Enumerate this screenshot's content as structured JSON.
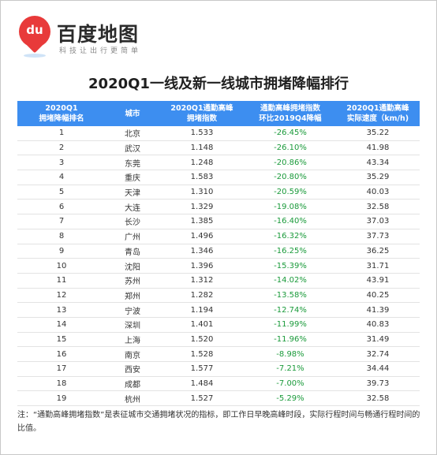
{
  "brand": {
    "logo_text": "du",
    "name": "百度地图",
    "slogan": "科技让出行更简单"
  },
  "title": "2020Q1一线及新一线城市拥堵降幅排行",
  "table": {
    "headers": [
      [
        "2020Q1",
        "拥堵降幅排名"
      ],
      [
        "城市"
      ],
      [
        "2020Q1通勤高峰",
        "拥堵指数"
      ],
      [
        "通勤高峰拥堵指数",
        "环比2019Q4降幅"
      ],
      [
        "2020Q1通勤高峰",
        "实际速度（km/h)"
      ]
    ],
    "rows": [
      [
        "1",
        "北京",
        "1.533",
        "-26.45%",
        "35.22"
      ],
      [
        "2",
        "武汉",
        "1.148",
        "-26.10%",
        "41.98"
      ],
      [
        "3",
        "东莞",
        "1.248",
        "-20.86%",
        "43.34"
      ],
      [
        "4",
        "重庆",
        "1.583",
        "-20.80%",
        "35.29"
      ],
      [
        "5",
        "天津",
        "1.310",
        "-20.59%",
        "40.03"
      ],
      [
        "6",
        "大连",
        "1.329",
        "-19.08%",
        "32.58"
      ],
      [
        "7",
        "长沙",
        "1.385",
        "-16.40%",
        "37.03"
      ],
      [
        "8",
        "广州",
        "1.496",
        "-16.32%",
        "37.73"
      ],
      [
        "9",
        "青岛",
        "1.346",
        "-16.25%",
        "36.25"
      ],
      [
        "10",
        "沈阳",
        "1.396",
        "-15.39%",
        "31.71"
      ],
      [
        "11",
        "苏州",
        "1.312",
        "-14.02%",
        "43.91"
      ],
      [
        "12",
        "郑州",
        "1.282",
        "-13.58%",
        "40.25"
      ],
      [
        "13",
        "宁波",
        "1.194",
        "-12.74%",
        "41.39"
      ],
      [
        "14",
        "深圳",
        "1.401",
        "-11.99%",
        "40.83"
      ],
      [
        "15",
        "上海",
        "1.520",
        "-11.96%",
        "31.49"
      ],
      [
        "16",
        "南京",
        "1.528",
        "-8.98%",
        "32.74"
      ],
      [
        "17",
        "西安",
        "1.577",
        "-7.21%",
        "34.44"
      ],
      [
        "18",
        "成都",
        "1.484",
        "-7.00%",
        "39.73"
      ],
      [
        "19",
        "杭州",
        "1.527",
        "-5.29%",
        "32.58"
      ]
    ]
  },
  "note": "注：“通勤高峰拥堵指数”是表征城市交通拥堵状况的指标，即工作日早晚高峰时段，实际行程时间与畅通行程时间的比值。",
  "colors": {
    "header_bg": "#3d8ef0",
    "decline_text": "#1a9a3a",
    "logo_red": "#e83a3a"
  }
}
